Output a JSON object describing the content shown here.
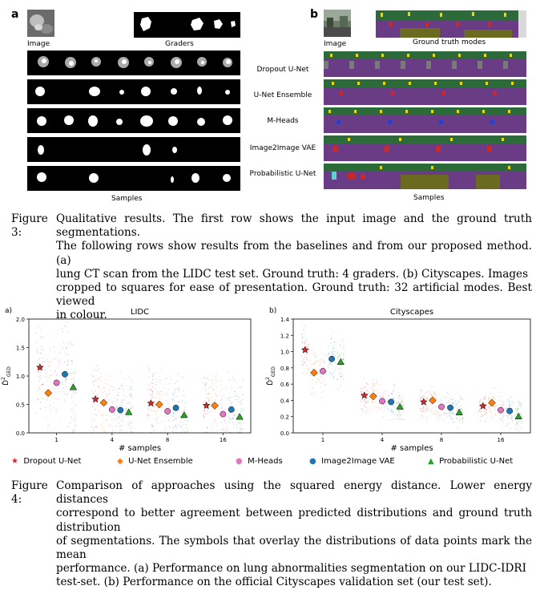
{
  "figure3": {
    "panel_a_letter": "a",
    "panel_b_letter": "b",
    "panel_a": {
      "image_label": "Image",
      "graders_label": "Graders",
      "samples_label": "Samples"
    },
    "panel_b": {
      "image_label": "Image",
      "gt_label": "Ground truth modes",
      "samples_label": "Samples"
    },
    "method_rows": [
      "Dropout U-Net",
      "U-Net Ensemble",
      "M-Heads",
      "Image2Image VAE",
      "Probabilistic U-Net"
    ],
    "caption": {
      "prefix": "Figure 3:",
      "lines": [
        "Qualitative results. The first row shows the input image and the ground truth segmentations.",
        "The following rows show results from the baselines and from our proposed method. (a)",
        "lung CT scan from the LIDC test set. Ground truth: 4 graders. (b) Cityscapes. Images",
        "cropped to squares for ease of presentation. Ground truth: 32 artificial modes. Best viewed",
        "in colour."
      ]
    }
  },
  "figure4": {
    "caption": {
      "prefix": "Figure 4:",
      "lines": [
        "Comparison of approaches using the squared energy distance. Lower energy distances",
        "correspond to better agreement between predicted distributions and ground truth distribution",
        "of segmentations. The symbols that overlay the distributions of data points mark the mean",
        "performance. (a) Performance on lung abnormalities segmentation on our LIDC-IDRI",
        "test-set. (b) Performance on the official Cityscapes validation set (our test set)."
      ]
    },
    "legend": [
      {
        "name": "Dropout U-Net",
        "marker": "★",
        "color": "#d62728"
      },
      {
        "name": "U-Net Ensemble",
        "marker": "◆",
        "color": "#ff7f0e"
      },
      {
        "name": "M-Heads",
        "marker": "●",
        "color": "#e377c2"
      },
      {
        "name": "Image2Image VAE",
        "marker": "●",
        "color": "#1f77b4"
      },
      {
        "name": "Probabilistic U-Net",
        "marker": "▲",
        "color": "#2ca02c"
      }
    ]
  },
  "chart_data": [
    {
      "type": "scatter",
      "panel": "a)",
      "title": "LIDC",
      "xlabel": "# samples",
      "ylabel": "D̂²GED",
      "ylabel_main": "D̂",
      "ylabel_sup": "2",
      "ylabel_sub": "GED",
      "categories": [
        "1",
        "4",
        "8",
        "16"
      ],
      "ylim": [
        0.0,
        2.0
      ],
      "yticks": [
        "0.0",
        "0.5",
        "1.0",
        "1.5",
        "2.0"
      ],
      "series": [
        {
          "name": "Dropout U-Net",
          "values": [
            1.15,
            0.59,
            0.52,
            0.48
          ]
        },
        {
          "name": "U-Net Ensemble",
          "values": [
            0.7,
            0.53,
            0.5,
            0.48
          ]
        },
        {
          "name": "M-Heads",
          "values": [
            0.88,
            0.41,
            0.38,
            0.33
          ]
        },
        {
          "name": "Image2Image VAE",
          "values": [
            1.03,
            0.4,
            0.44,
            0.41
          ]
        },
        {
          "name": "Probabilistic U-Net",
          "values": [
            0.8,
            0.36,
            0.31,
            0.28
          ]
        }
      ]
    },
    {
      "type": "scatter",
      "panel": "b)",
      "title": "Cityscapes",
      "xlabel": "# samples",
      "ylabel": "D̂²GED",
      "ylabel_main": "D̂",
      "ylabel_sup": "2",
      "ylabel_sub": "GED",
      "categories": [
        "1",
        "4",
        "8",
        "16"
      ],
      "ylim": [
        0.0,
        1.4
      ],
      "yticks": [
        "0.0",
        "0.2",
        "0.4",
        "0.6",
        "0.8",
        "1.0",
        "1.2",
        "1.4"
      ],
      "series": [
        {
          "name": "Dropout U-Net",
          "values": [
            1.02,
            0.46,
            0.38,
            0.33
          ]
        },
        {
          "name": "U-Net Ensemble",
          "values": [
            0.74,
            0.45,
            0.4,
            0.37
          ]
        },
        {
          "name": "M-Heads",
          "values": [
            0.76,
            0.39,
            0.32,
            0.28
          ]
        },
        {
          "name": "Image2Image VAE",
          "values": [
            0.91,
            0.38,
            0.31,
            0.27
          ]
        },
        {
          "name": "Probabilistic U-Net",
          "values": [
            0.87,
            0.32,
            0.25,
            0.2
          ]
        }
      ]
    }
  ]
}
